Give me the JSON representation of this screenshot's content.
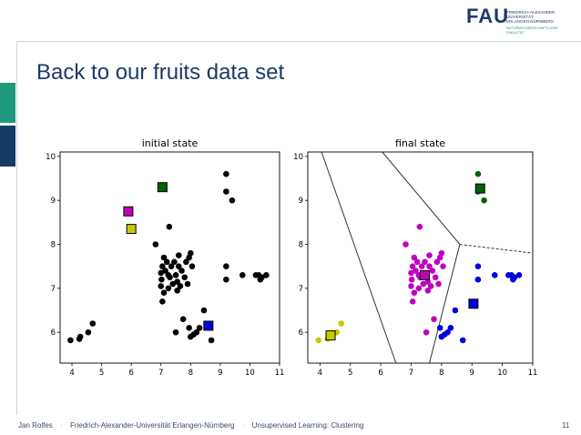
{
  "logo": {
    "text": "FAU",
    "sub_lines": [
      "FRIEDRICH-ALEXANDER",
      "UNIVERSITÄT",
      "ERLANGEN-NÜRNBERG"
    ],
    "faculty_lines": [
      "NATURWISSENSCHAFTLICHE",
      "FAKULTÄT"
    ]
  },
  "slide": {
    "title": "Back to our fruits data set"
  },
  "footer": {
    "author": "Jan Rolfes",
    "separator": "·",
    "university": "Friedrich-Alexander-Universität Erlangen-Nürnberg",
    "course": "Unsupervised Learning: Clustering",
    "page": "11"
  },
  "colors": {
    "brand_blue": "#1d3a66",
    "brand_green": "#1f9a7c",
    "cluster_green": "#006400",
    "cluster_magenta": "#c000c0",
    "cluster_yellow": "#c8c800",
    "cluster_blue": "#0000e0",
    "unassigned": "#000000"
  },
  "chart_data": [
    {
      "type": "scatter",
      "title": "initial state",
      "xlim": [
        3.6,
        11
      ],
      "ylim": [
        5.3,
        10.1
      ],
      "xticks": [
        4,
        5,
        6,
        7,
        8,
        9,
        10,
        11
      ],
      "yticks": [
        6,
        7,
        8,
        9,
        10
      ],
      "points": [
        [
          3.95,
          5.82
        ],
        [
          4.25,
          5.85
        ],
        [
          4.28,
          5.9
        ],
        [
          4.55,
          6.0
        ],
        [
          4.7,
          6.2
        ],
        [
          6.82,
          8.0
        ],
        [
          7.0,
          7.35
        ],
        [
          7.05,
          7.5
        ],
        [
          7.1,
          7.7
        ],
        [
          7.02,
          7.2
        ],
        [
          7.15,
          7.4
        ],
        [
          7.2,
          7.6
        ],
        [
          7.1,
          6.9
        ],
        [
          7.25,
          7.0
        ],
        [
          7.3,
          7.25
        ],
        [
          7.35,
          7.5
        ],
        [
          7.45,
          7.6
        ],
        [
          7.5,
          7.3
        ],
        [
          7.55,
          7.15
        ],
        [
          7.6,
          7.5
        ],
        [
          7.65,
          7.05
        ],
        [
          7.7,
          7.4
        ],
        [
          7.8,
          7.25
        ],
        [
          7.85,
          7.6
        ],
        [
          7.9,
          7.1
        ],
        [
          7.95,
          7.7
        ],
        [
          8.0,
          7.8
        ],
        [
          8.05,
          7.5
        ],
        [
          7.05,
          6.7
        ],
        [
          7.4,
          7.1
        ],
        [
          7.0,
          7.05
        ],
        [
          7.25,
          7.3
        ],
        [
          7.55,
          6.95
        ],
        [
          7.6,
          7.75
        ],
        [
          7.28,
          8.4
        ],
        [
          7.5,
          6.0
        ],
        [
          7.75,
          6.3
        ],
        [
          7.95,
          6.1
        ],
        [
          8.0,
          5.9
        ],
        [
          8.1,
          5.95
        ],
        [
          8.2,
          6.0
        ],
        [
          8.3,
          6.1
        ],
        [
          8.45,
          6.5
        ],
        [
          8.7,
          5.82
        ],
        [
          9.2,
          9.6
        ],
        [
          9.2,
          9.2
        ],
        [
          9.4,
          9.0
        ],
        [
          9.2,
          7.5
        ],
        [
          9.2,
          7.2
        ],
        [
          9.75,
          7.3
        ],
        [
          10.2,
          7.3
        ],
        [
          10.3,
          7.3
        ],
        [
          10.4,
          7.25
        ],
        [
          10.55,
          7.3
        ],
        [
          10.35,
          7.2
        ]
      ],
      "centroids": [
        {
          "x": 7.05,
          "y": 9.3,
          "color": "#006400"
        },
        {
          "x": 5.9,
          "y": 8.75,
          "color": "#c000c0"
        },
        {
          "x": 6.0,
          "y": 8.35,
          "color": "#c8c800"
        },
        {
          "x": 8.6,
          "y": 6.15,
          "color": "#0000e0"
        }
      ]
    },
    {
      "type": "scatter",
      "title": "final state",
      "xlim": [
        3.6,
        11
      ],
      "ylim": [
        5.3,
        10.1
      ],
      "xticks": [
        4,
        5,
        6,
        7,
        8,
        9,
        10,
        11
      ],
      "yticks": [
        6,
        7,
        8,
        9,
        10
      ],
      "series": [
        {
          "color": "#006400",
          "points": [
            [
              9.2,
              9.6
            ],
            [
              9.2,
              9.2
            ],
            [
              9.4,
              9.0
            ]
          ],
          "centroid": [
            9.27,
            9.27
          ]
        },
        {
          "color": "#c000c0",
          "points": [
            [
              6.82,
              8.0
            ],
            [
              7.0,
              7.35
            ],
            [
              7.05,
              7.5
            ],
            [
              7.1,
              7.7
            ],
            [
              7.02,
              7.2
            ],
            [
              7.15,
              7.4
            ],
            [
              7.2,
              7.6
            ],
            [
              7.1,
              6.9
            ],
            [
              7.25,
              7.0
            ],
            [
              7.3,
              7.25
            ],
            [
              7.35,
              7.5
            ],
            [
              7.45,
              7.6
            ],
            [
              7.5,
              7.3
            ],
            [
              7.55,
              7.15
            ],
            [
              7.6,
              7.5
            ],
            [
              7.65,
              7.05
            ],
            [
              7.7,
              7.4
            ],
            [
              7.8,
              7.25
            ],
            [
              7.85,
              7.6
            ],
            [
              7.9,
              7.1
            ],
            [
              7.95,
              7.7
            ],
            [
              8.0,
              7.8
            ],
            [
              8.05,
              7.5
            ],
            [
              7.05,
              6.7
            ],
            [
              7.4,
              7.1
            ],
            [
              7.0,
              7.05
            ],
            [
              7.25,
              7.3
            ],
            [
              7.55,
              6.95
            ],
            [
              7.6,
              7.75
            ],
            [
              7.28,
              8.4
            ],
            [
              7.75,
              6.3
            ],
            [
              7.5,
              6.0
            ]
          ],
          "centroid": [
            7.45,
            7.3
          ]
        },
        {
          "color": "#c8c800",
          "points": [
            [
              3.95,
              5.82
            ],
            [
              4.25,
              5.85
            ],
            [
              4.28,
              5.9
            ],
            [
              4.55,
              6.0
            ],
            [
              4.7,
              6.2
            ]
          ],
          "centroid": [
            4.35,
            5.93
          ]
        },
        {
          "color": "#0000e0",
          "points": [
            [
              7.95,
              6.1
            ],
            [
              8.0,
              5.9
            ],
            [
              8.1,
              5.95
            ],
            [
              8.2,
              6.0
            ],
            [
              8.3,
              6.1
            ],
            [
              8.45,
              6.5
            ],
            [
              8.7,
              5.82
            ],
            [
              9.2,
              7.5
            ],
            [
              9.2,
              7.2
            ],
            [
              9.75,
              7.3
            ],
            [
              10.2,
              7.3
            ],
            [
              10.3,
              7.3
            ],
            [
              10.4,
              7.25
            ],
            [
              10.55,
              7.3
            ],
            [
              10.35,
              7.2
            ]
          ],
          "centroid": [
            9.05,
            6.65
          ]
        }
      ],
      "boundaries": [
        {
          "from": [
            4.05,
            10.1
          ],
          "to": [
            6.5,
            5.3
          ],
          "style": "solid"
        },
        {
          "from": [
            6.05,
            10.1
          ],
          "to": [
            8.6,
            8.0
          ],
          "style": "solid"
        },
        {
          "from": [
            8.6,
            8.0
          ],
          "to": [
            7.6,
            5.3
          ],
          "style": "solid"
        },
        {
          "from": [
            8.6,
            8.0
          ],
          "to": [
            11,
            7.8
          ],
          "style": "dashed"
        }
      ]
    }
  ]
}
